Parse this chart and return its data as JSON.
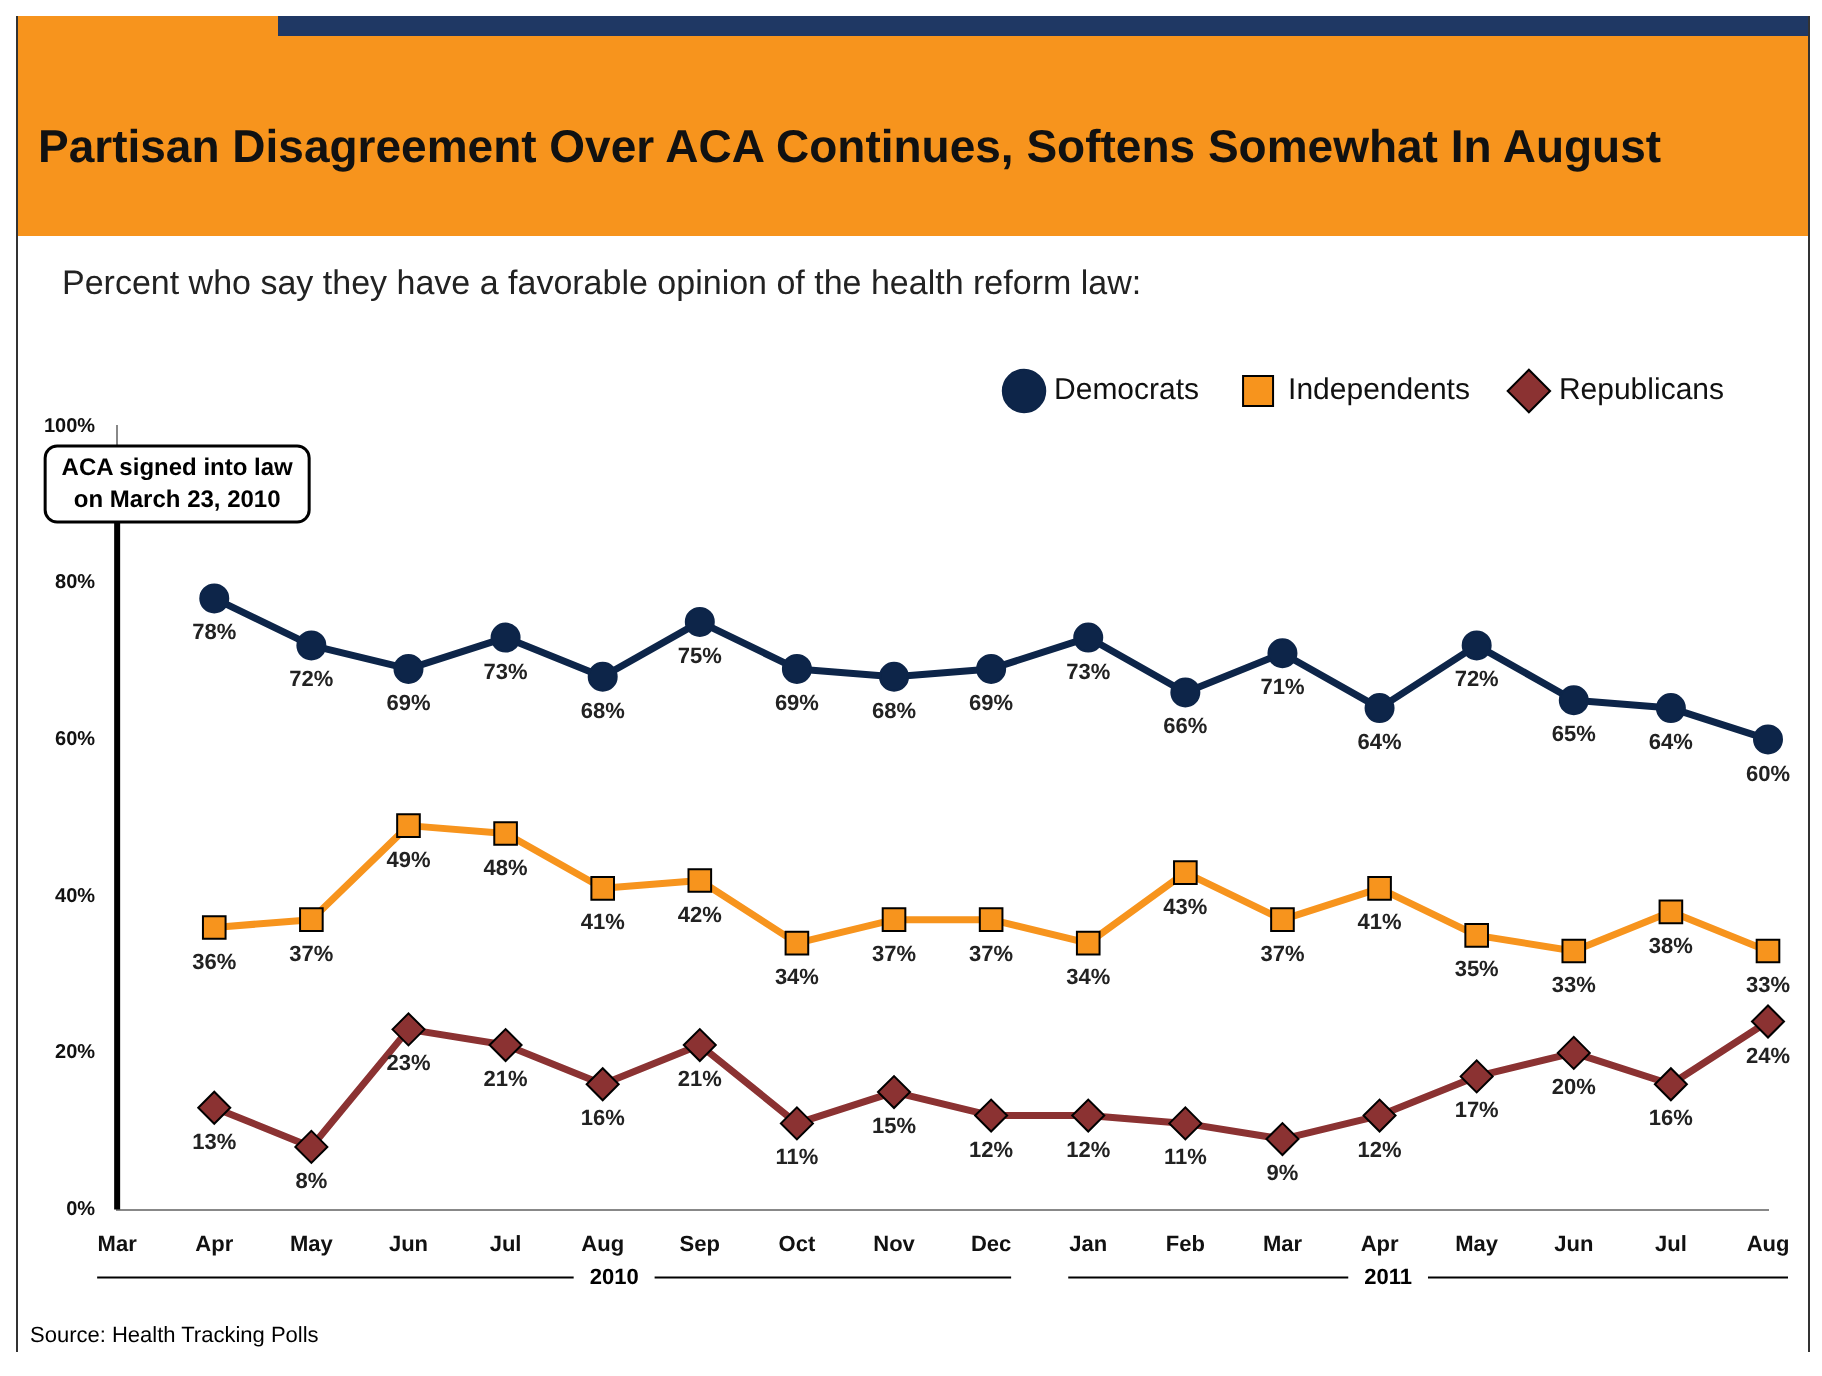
{
  "chart_data": {
    "type": "line",
    "title": "Partisan Disagreement Over ACA Continues, Softens Somewhat In August",
    "subtitle": "Percent who say they have a favorable opinion of the health reform law:",
    "categories": [
      "Mar",
      "Apr",
      "May",
      "Jun",
      "Jul",
      "Aug",
      "Sep",
      "Oct",
      "Nov",
      "Dec",
      "Jan",
      "Feb",
      "Mar",
      "Apr",
      "May",
      "Jun",
      "Jul",
      "Aug"
    ],
    "series": [
      {
        "name": "Democrats",
        "color": "#0d2549",
        "marker": "circle",
        "values": [
          null,
          78,
          72,
          69,
          73,
          68,
          75,
          69,
          68,
          69,
          73,
          66,
          71,
          64,
          72,
          65,
          64,
          60
        ],
        "value_labels": [
          null,
          "78%",
          "72%",
          "69%",
          "73%",
          "68%",
          "75%",
          "69%",
          "68%",
          "69%",
          "73%",
          "66%",
          "71%",
          "64%",
          "72%",
          "65%",
          "64%",
          "60%"
        ]
      },
      {
        "name": "Independents",
        "color": "#f7941d",
        "marker": "square",
        "values": [
          null,
          36,
          37,
          49,
          48,
          41,
          42,
          34,
          37,
          37,
          34,
          43,
          37,
          41,
          35,
          33,
          38,
          33
        ],
        "value_labels": [
          null,
          "36%",
          "37%",
          "49%",
          "48%",
          "41%",
          "42%",
          "34%",
          "37%",
          "37%",
          "34%",
          "43%",
          "37%",
          "41%",
          "35%",
          "33%",
          "38%",
          "33%"
        ]
      },
      {
        "name": "Republicans",
        "color": "#8b3232",
        "marker": "diamond",
        "values": [
          null,
          13,
          8,
          23,
          21,
          16,
          21,
          11,
          15,
          12,
          12,
          11,
          9,
          12,
          17,
          20,
          16,
          24
        ],
        "value_labels": [
          null,
          "13%",
          "8%",
          "23%",
          "21%",
          "16%",
          "21%",
          "11%",
          "15%",
          "12%",
          "12%",
          "11%",
          "9%",
          "12%",
          "17%",
          "20%",
          "16%",
          "24%"
        ]
      }
    ],
    "ylim": [
      0,
      100
    ],
    "yticks": [
      {
        "value": 0,
        "label": "0%"
      },
      {
        "value": 20,
        "label": "20%"
      },
      {
        "value": 40,
        "label": "40%"
      },
      {
        "value": 60,
        "label": "60%"
      },
      {
        "value": 80,
        "label": "80%"
      },
      {
        "value": 100,
        "label": "100%"
      }
    ],
    "ref_lines": [
      {
        "axis": "x",
        "value": "Mar",
        "label": "ACA signed into law on March 23, 2010",
        "color": "#000000"
      }
    ],
    "grid": false,
    "legend": "top right",
    "annotations": [
      "2010",
      "2011",
      "Source: Health Tracking Polls"
    ]
  }
}
